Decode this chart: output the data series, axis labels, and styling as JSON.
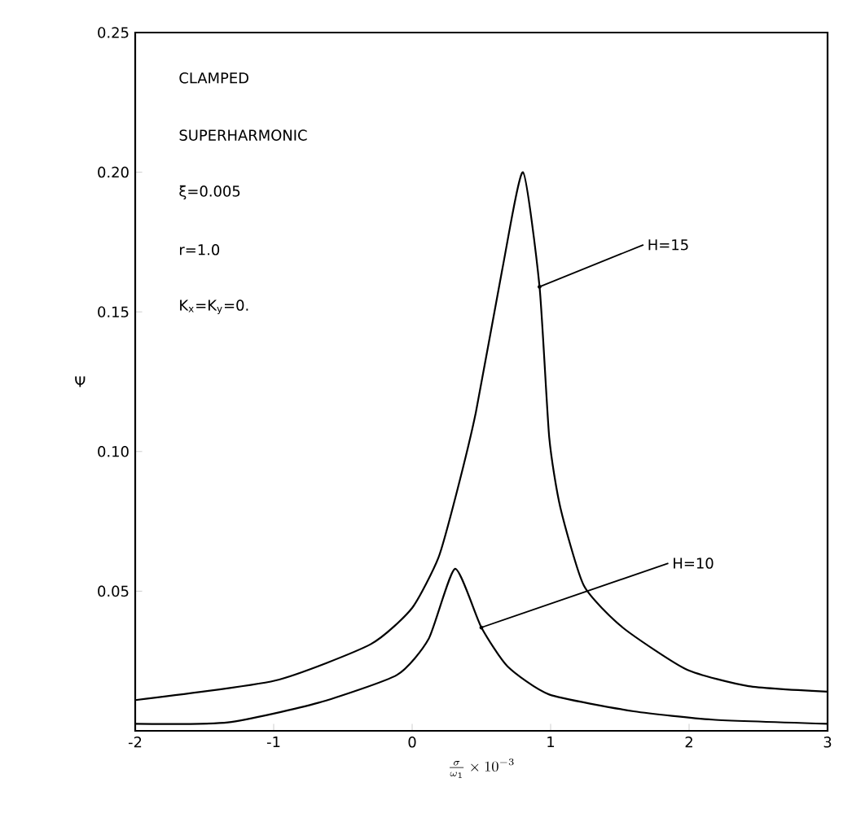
{
  "chart_data": {
    "type": "line",
    "xlabel": "\\frac{\\sigma}{\\omega_1}\\times 10^{-3}",
    "ylabel": "Ψ",
    "xlim": [
      -2,
      3
    ],
    "ylim": [
      0,
      0.25
    ],
    "xticks": [
      -2,
      -1,
      0,
      1,
      2,
      3
    ],
    "yticks": [
      0.05,
      {
        "value": 0.1,
        "label": "0.10"
      },
      0.15,
      {
        "value": 0.2,
        "label": "0.20"
      },
      0.25
    ],
    "marker": "none",
    "line_style": "solid",
    "series": [
      {
        "color": "#000000",
        "x": [
          -2,
          -0.99,
          -0.3,
          0.0,
          0.19,
          0.32,
          0.46,
          0.65,
          0.8,
          0.92,
          0.99,
          1.07,
          1.24,
          1.52,
          1.98,
          2.43,
          3
        ],
        "values": [
          0.011,
          0.018,
          0.031,
          0.044,
          0.062,
          0.085,
          0.114,
          0.165,
          0.2,
          0.159,
          0.105,
          0.08,
          0.052,
          0.037,
          0.022,
          0.016,
          0.014
        ]
      },
      {
        "color": "#000000",
        "x": [
          -2,
          -1.33,
          -0.68,
          -0.11,
          0.12,
          0.31,
          0.5,
          0.69,
          0.99,
          1.6,
          2.17,
          3
        ],
        "values": [
          0.0025,
          0.003,
          0.01,
          0.02,
          0.033,
          0.058,
          0.037,
          0.023,
          0.013,
          0.007,
          0.004,
          0.0025
        ]
      }
    ],
    "annotations": [
      "CLAMPED",
      "SUPERHARMONIC",
      "ξ=0.005",
      "r=1.0",
      "K$_{x}$=K$_{y}$=0.",
      {
        "text": "H=15",
        "x": 0.92,
        "y": 0.159
      },
      {
        "text": "H=10",
        "x": 0.5,
        "y": 0.037
      }
    ]
  }
}
